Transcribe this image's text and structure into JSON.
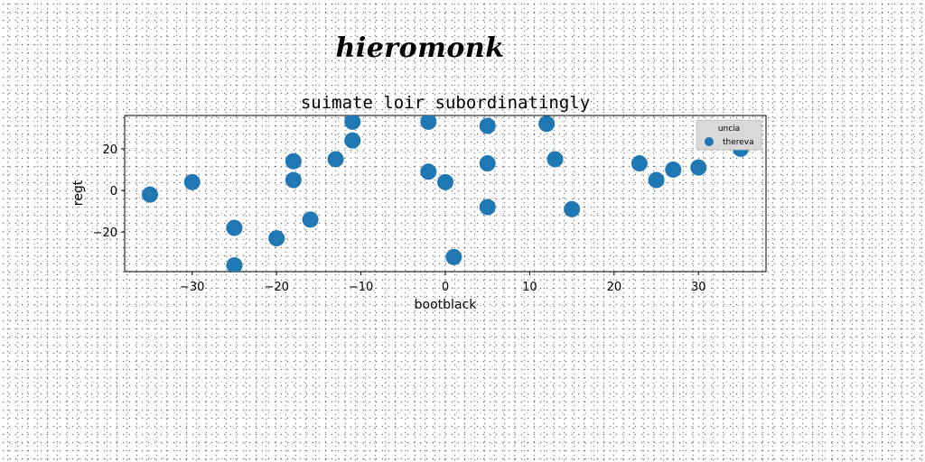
{
  "figure": {
    "title": "hieromonk"
  },
  "chart_data": {
    "type": "scatter",
    "title": "suimate loir subordinatingly",
    "xlabel": "bootblack",
    "ylabel": "regt",
    "xlim": [
      -38,
      38
    ],
    "ylim": [
      -39,
      36
    ],
    "xticks": [
      -30,
      -20,
      -10,
      0,
      10,
      20,
      30
    ],
    "yticks": [
      -20,
      0,
      20
    ],
    "grid": false,
    "legend": {
      "title": "uncia",
      "placement": "top-right",
      "entries": [
        "thereva"
      ]
    },
    "series": [
      {
        "name": "thereva",
        "color": "#1f77b4",
        "x": [
          -35,
          -30,
          -25,
          -25,
          -20,
          -18,
          -18,
          -16,
          -13,
          -11,
          -11,
          -2,
          -2,
          0,
          1,
          5,
          5,
          5,
          12,
          13,
          15,
          23,
          25,
          27,
          30,
          35
        ],
        "y": [
          -2,
          4,
          -18,
          -36,
          -23,
          14,
          5,
          -14,
          15,
          33,
          24,
          33,
          9,
          4,
          -32,
          31,
          13,
          -8,
          32,
          15,
          -9,
          13,
          5,
          10,
          11,
          20
        ]
      }
    ]
  }
}
